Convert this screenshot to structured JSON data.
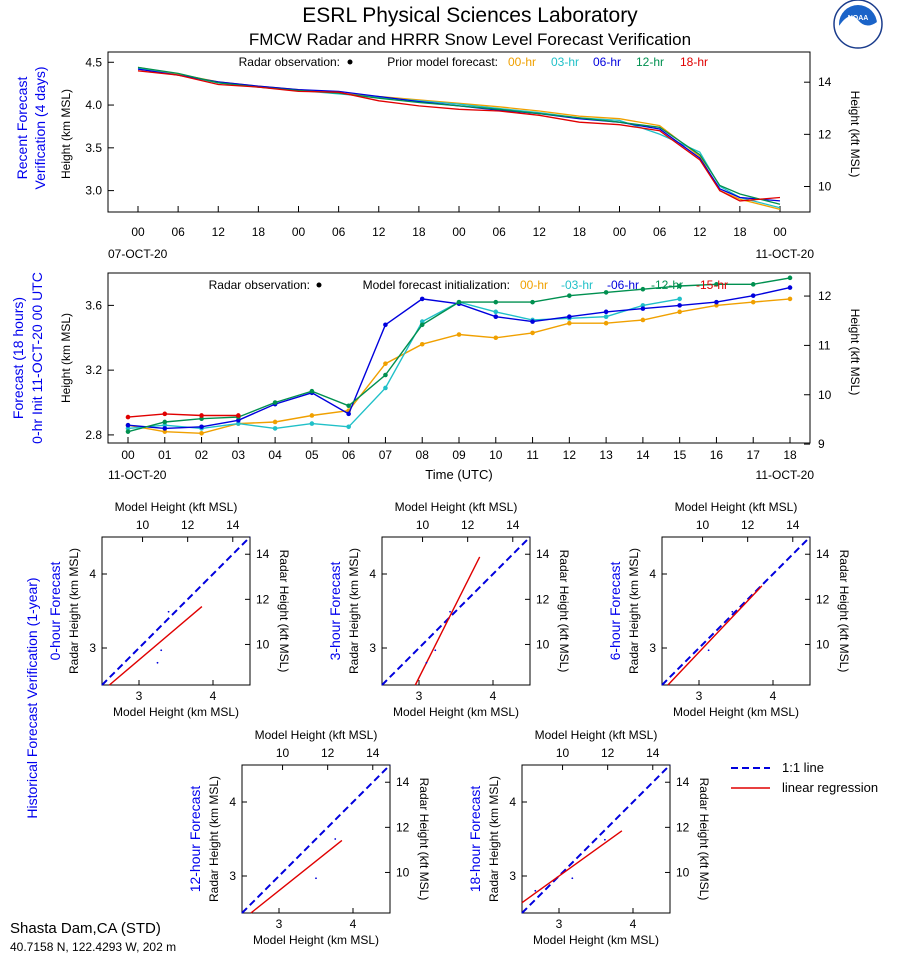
{
  "header": {
    "title": "ESRL Physical Sciences Laboratory",
    "subtitle": "FMCW Radar and HRRR Snow Level Forecast Verification",
    "logo_text": "NOAA"
  },
  "colors": {
    "f00": "#f0a000",
    "f03": "#20c0c8",
    "f06": "#0000dd",
    "f12": "#009050",
    "f18": "#e00000",
    "label_blue": "#0000ee"
  },
  "panel1": {
    "section_label_1": "Recent Forecast",
    "section_label_2": "Verification (4 days)",
    "ylabel_left": "Height (km MSL)",
    "ylabel_right": "Height (kft MSL)",
    "legend_obs": "Radar observation:",
    "legend_prior": "Prior model forecast:",
    "legend_items": [
      "00-hr",
      "03-hr",
      "06-hr",
      "12-hr",
      "18-hr"
    ],
    "date_left": "07-OCT-20",
    "date_right": "11-OCT-20",
    "xticks": [
      "00",
      "06",
      "12",
      "18",
      "00",
      "06",
      "12",
      "18",
      "00",
      "06",
      "12",
      "18",
      "00",
      "06",
      "12",
      "18",
      "00"
    ],
    "yticks_left": [
      "3.0",
      "3.5",
      "4.0",
      "4.5"
    ],
    "yticks_right": [
      "10",
      "12",
      "14"
    ]
  },
  "panel2": {
    "section_label_1": "Forecast (18 hours)",
    "section_label_2": "0-hr Init 11-OCT-20 00 UTC",
    "ylabel_left": "Height (km MSL)",
    "ylabel_right": "Height (kft MSL)",
    "legend_obs": "Radar observation:",
    "legend_init": "Model forecast initialization:",
    "legend_items": [
      "00-hr",
      "-03-hr",
      "-06-hr",
      "-12-hr",
      "-15-hr"
    ],
    "date_left": "11-OCT-20",
    "date_right": "11-OCT-20",
    "xlabel": "Time (UTC)",
    "xticks": [
      "00",
      "01",
      "02",
      "03",
      "04",
      "05",
      "06",
      "07",
      "08",
      "09",
      "10",
      "11",
      "12",
      "13",
      "14",
      "15",
      "16",
      "17",
      "18"
    ],
    "yticks_left": [
      "2.8",
      "3.2",
      "3.6"
    ],
    "yticks_right": [
      "9",
      "10",
      "11",
      "12"
    ]
  },
  "scatter": {
    "side_label": "Historical Forecast Verification (1-year)",
    "xlabel": "Model Height (km MSL)",
    "xlabel_top": "Model Height (kft MSL)",
    "ylabel_left": "Radar Height (km MSL)",
    "ylabel_right": "Radar Height (kft MSL)",
    "xticks": [
      "3",
      "4"
    ],
    "xticks_top": [
      "10",
      "12",
      "14"
    ],
    "yticks": [
      "3",
      "4"
    ],
    "yticks_right": [
      "10",
      "12",
      "14"
    ],
    "legend_one_to_one": "1:1 line",
    "legend_regression": "linear regression",
    "panels": [
      {
        "title": "0-hour Forecast"
      },
      {
        "title": "3-hour Forecast"
      },
      {
        "title": "6-hour Forecast"
      },
      {
        "title": "12-hour Forecast"
      },
      {
        "title": "18-hour Forecast"
      }
    ]
  },
  "station": {
    "name": "Shasta Dam,CA (STD)",
    "coords": "40.7158 N, 122.4293 W, 202 m"
  },
  "chart_data": [
    {
      "type": "line",
      "title": "Recent Forecast Verification (4 days)",
      "ylabel": "Height (km MSL)",
      "y2label": "Height (kft MSL)",
      "x_unit": "hours since 07-OCT-20 00 UTC",
      "xlim": [
        0,
        96
      ],
      "ylim": [
        2.75,
        4.62
      ],
      "x": [
        0,
        6,
        12,
        18,
        24,
        30,
        36,
        42,
        48,
        54,
        60,
        66,
        72,
        78,
        84,
        87,
        90,
        96
      ],
      "series": [
        {
          "name": "00-hr",
          "color": "#f0a000",
          "values": [
            4.44,
            4.36,
            4.27,
            4.22,
            4.18,
            4.14,
            4.1,
            4.06,
            4.02,
            3.98,
            3.93,
            3.87,
            3.84,
            3.76,
            3.4,
            3.0,
            2.9,
            2.78
          ]
        },
        {
          "name": "03-hr",
          "color": "#20c0c8",
          "values": [
            4.43,
            4.35,
            4.26,
            4.21,
            4.17,
            4.13,
            4.09,
            4.05,
            4.01,
            3.96,
            3.91,
            3.85,
            3.82,
            3.66,
            3.45,
            3.05,
            2.92,
            2.8
          ]
        },
        {
          "name": "06-hr",
          "color": "#0000dd",
          "values": [
            4.42,
            4.35,
            4.27,
            4.22,
            4.18,
            4.16,
            4.1,
            4.04,
            3.99,
            3.94,
            3.9,
            3.84,
            3.8,
            3.72,
            3.38,
            3.02,
            2.92,
            2.88
          ]
        },
        {
          "name": "12-hr",
          "color": "#009050",
          "values": [
            4.44,
            4.37,
            4.26,
            4.21,
            4.17,
            4.14,
            4.08,
            4.03,
            3.99,
            3.95,
            3.9,
            3.85,
            3.8,
            3.74,
            3.42,
            3.06,
            2.96,
            2.84
          ]
        },
        {
          "name": "18-hr",
          "color": "#e00000",
          "values": [
            4.4,
            4.35,
            4.24,
            4.21,
            4.16,
            4.15,
            4.05,
            3.99,
            3.95,
            3.93,
            3.88,
            3.8,
            3.77,
            3.7,
            3.36,
            3.0,
            2.88,
            2.92
          ]
        }
      ]
    },
    {
      "type": "line",
      "title": "Forecast (18 hours) 0-hr Init 11-OCT-20 00 UTC",
      "xlabel": "Time (UTC)",
      "ylabel": "Height (km MSL)",
      "y2label": "Height (kft MSL)",
      "xlim": [
        0,
        18
      ],
      "ylim": [
        2.75,
        3.8
      ],
      "series": [
        {
          "name": "00-hr",
          "color": "#f0a000",
          "x": [
            0,
            1,
            2,
            3,
            4,
            5,
            6,
            7,
            8,
            9,
            10,
            11,
            12,
            13,
            14,
            15,
            16,
            17,
            18
          ],
          "values": [
            2.86,
            2.82,
            2.81,
            2.87,
            2.88,
            2.92,
            2.95,
            3.24,
            3.36,
            3.42,
            3.4,
            3.43,
            3.49,
            3.49,
            3.51,
            3.56,
            3.6,
            3.62,
            3.64
          ]
        },
        {
          "name": "-03-hr",
          "color": "#20c0c8",
          "x": [
            0,
            1,
            2,
            3,
            4,
            5,
            6,
            7,
            8,
            9,
            10,
            11,
            12,
            13,
            14,
            15
          ],
          "values": [
            2.84,
            2.86,
            2.84,
            2.87,
            2.84,
            2.87,
            2.85,
            3.09,
            3.5,
            3.62,
            3.56,
            3.51,
            3.52,
            3.53,
            3.6,
            3.64
          ]
        },
        {
          "name": "-06-hr",
          "color": "#0000dd",
          "x": [
            0,
            1,
            2,
            3,
            4,
            5,
            6,
            7,
            8,
            9,
            10,
            11,
            12,
            13,
            14,
            15,
            16,
            17,
            18
          ],
          "values": [
            2.86,
            2.84,
            2.85,
            2.89,
            2.99,
            3.06,
            2.93,
            3.48,
            3.64,
            3.61,
            3.53,
            3.5,
            3.53,
            3.56,
            3.58,
            3.6,
            3.62,
            3.66,
            3.71
          ]
        },
        {
          "name": "-12-hr",
          "color": "#009050",
          "x": [
            0,
            1,
            2,
            3,
            4,
            5,
            6,
            7,
            8,
            9,
            10,
            11,
            12,
            13,
            14,
            15,
            16,
            17,
            18
          ],
          "values": [
            2.82,
            2.88,
            2.9,
            2.91,
            3.0,
            3.07,
            2.98,
            3.17,
            3.48,
            3.62,
            3.62,
            3.62,
            3.66,
            3.68,
            3.7,
            3.72,
            3.73,
            3.73,
            3.77
          ]
        },
        {
          "name": "-15-hr",
          "color": "#e00000",
          "x": [
            0,
            1,
            2,
            3
          ],
          "values": [
            2.91,
            2.93,
            2.92,
            2.92
          ]
        }
      ]
    },
    {
      "type": "scatter",
      "title": "0-hour Forecast",
      "xlabel": "Model Height (km MSL)",
      "ylabel": "Radar Height (km MSL)",
      "xlim": [
        2.5,
        4.5
      ],
      "ylim": [
        2.5,
        4.5
      ],
      "points": [
        [
          3.25,
          2.8
        ],
        [
          3.3,
          2.97
        ],
        [
          3.4,
          3.49
        ]
      ],
      "regression": {
        "x": [
          2.6,
          3.85
        ],
        "y": [
          2.5,
          3.56
        ]
      }
    },
    {
      "type": "scatter",
      "title": "3-hour Forecast",
      "xlabel": "Model Height (km MSL)",
      "ylabel": "Radar Height (km MSL)",
      "xlim": [
        2.5,
        4.5
      ],
      "ylim": [
        2.5,
        4.5
      ],
      "points": [
        [
          3.1,
          2.8
        ],
        [
          3.22,
          2.97
        ],
        [
          3.42,
          3.49
        ]
      ],
      "regression": {
        "x": [
          2.95,
          3.82
        ],
        "y": [
          2.5,
          4.23
        ]
      }
    },
    {
      "type": "scatter",
      "title": "6-hour Forecast",
      "xlabel": "Model Height (km MSL)",
      "ylabel": "Radar Height (km MSL)",
      "xlim": [
        2.5,
        4.5
      ],
      "ylim": [
        2.5,
        4.5
      ],
      "points": [
        [
          3.13,
          2.97
        ],
        [
          3.45,
          3.49
        ]
      ],
      "regression": {
        "x": [
          2.58,
          3.85
        ],
        "y": [
          2.5,
          3.84
        ]
      }
    },
    {
      "type": "scatter",
      "title": "12-hour Forecast",
      "xlabel": "Model Height (km MSL)",
      "ylabel": "Radar Height (km MSL)",
      "xlim": [
        2.5,
        4.5
      ],
      "ylim": [
        2.5,
        4.5
      ],
      "points": [
        [
          3.5,
          2.97
        ],
        [
          3.76,
          3.5
        ]
      ],
      "regression": {
        "x": [
          2.62,
          3.85
        ],
        "y": [
          2.5,
          3.48
        ]
      }
    },
    {
      "type": "scatter",
      "title": "18-hour Forecast",
      "xlabel": "Model Height (km MSL)",
      "ylabel": "Radar Height (km MSL)",
      "xlim": [
        2.5,
        4.5
      ],
      "ylim": [
        2.5,
        4.5
      ],
      "points": [
        [
          2.68,
          2.8
        ],
        [
          3.18,
          2.97
        ],
        [
          3.62,
          3.49
        ]
      ],
      "regression": {
        "x": [
          2.5,
          3.85
        ],
        "y": [
          2.64,
          3.61
        ]
      }
    }
  ]
}
